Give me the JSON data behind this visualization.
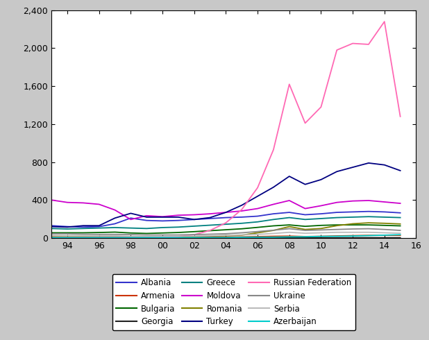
{
  "years": [
    1993,
    1994,
    1995,
    1996,
    1997,
    1998,
    1999,
    2000,
    2001,
    2002,
    2003,
    2004,
    2005,
    2006,
    2007,
    2008,
    2009,
    2010,
    2011,
    2012,
    2013,
    2014,
    2015
  ],
  "series": {
    "Albania": {
      "color": "#3333CC",
      "values": [
        130,
        120,
        115,
        120,
        150,
        210,
        185,
        180,
        185,
        195,
        205,
        215,
        220,
        230,
        255,
        270,
        245,
        255,
        270,
        275,
        280,
        275,
        265
      ]
    },
    "Armenia": {
      "color": "#CC3300",
      "values": [
        10,
        8,
        7,
        6,
        6,
        5,
        5,
        6,
        6,
        7,
        8,
        10,
        12,
        15,
        18,
        20,
        15,
        18,
        22,
        25,
        28,
        28,
        28
      ]
    },
    "Bulgaria": {
      "color": "#006600",
      "values": [
        55,
        55,
        55,
        58,
        62,
        53,
        48,
        53,
        58,
        67,
        77,
        87,
        97,
        112,
        128,
        138,
        123,
        133,
        138,
        138,
        138,
        133,
        128
      ]
    },
    "Georgia": {
      "color": "#222222",
      "values": [
        5,
        4,
        3,
        3,
        3,
        3,
        3,
        3,
        3,
        3,
        3,
        3,
        3,
        3,
        3,
        3,
        3,
        3,
        3,
        3,
        3,
        3,
        3
      ]
    },
    "Greece": {
      "color": "#008080",
      "values": [
        100,
        95,
        100,
        105,
        110,
        105,
        100,
        110,
        115,
        125,
        135,
        145,
        155,
        170,
        195,
        215,
        195,
        205,
        215,
        220,
        225,
        220,
        215
      ]
    },
    "Moldova": {
      "color": "#CC00CC",
      "values": [
        400,
        375,
        370,
        355,
        295,
        195,
        235,
        225,
        240,
        245,
        255,
        270,
        285,
        310,
        355,
        395,
        310,
        340,
        375,
        390,
        395,
        380,
        365
      ]
    },
    "Romania": {
      "color": "#808000",
      "values": [
        12,
        12,
        12,
        12,
        12,
        12,
        12,
        12,
        15,
        15,
        20,
        25,
        30,
        55,
        80,
        120,
        90,
        100,
        130,
        150,
        160,
        155,
        148
      ]
    },
    "Turkey": {
      "color": "#000080",
      "values": [
        120,
        115,
        130,
        130,
        210,
        260,
        220,
        220,
        220,
        195,
        215,
        270,
        345,
        440,
        535,
        650,
        565,
        615,
        700,
        745,
        790,
        770,
        710
      ]
    },
    "Russian Federation": {
      "color": "#FF69B4",
      "values": [
        5,
        5,
        5,
        5,
        5,
        5,
        5,
        8,
        15,
        35,
        80,
        160,
        300,
        530,
        930,
        1620,
        1210,
        1380,
        1980,
        2050,
        2040,
        2280,
        1280
      ]
    },
    "Ukraine": {
      "color": "#888888",
      "values": [
        45,
        45,
        40,
        38,
        38,
        36,
        32,
        32,
        32,
        36,
        40,
        45,
        55,
        68,
        82,
        98,
        80,
        85,
        90,
        95,
        98,
        90,
        80
      ]
    },
    "Serbia": {
      "color": "#BBBBBB",
      "values": [
        28,
        26,
        26,
        23,
        23,
        18,
        16,
        16,
        18,
        20,
        23,
        28,
        33,
        38,
        48,
        60,
        50,
        55,
        60,
        60,
        60,
        55,
        50
      ]
    },
    "Azerbaijan": {
      "color": "#00CCCC",
      "values": [
        4,
        4,
        4,
        4,
        4,
        4,
        4,
        4,
        4,
        4,
        4,
        4,
        8,
        9,
        9,
        12,
        13,
        17,
        18,
        21,
        25,
        30,
        35
      ]
    }
  },
  "xlim": [
    1993,
    2016
  ],
  "ylim": [
    0,
    2400
  ],
  "yticks": [
    0,
    400,
    800,
    1200,
    1600,
    2000,
    2400
  ],
  "xticks": [
    1994,
    1996,
    1998,
    2000,
    2002,
    2004,
    2006,
    2008,
    2010,
    2012,
    2014,
    2016
  ],
  "xtick_labels": [
    "94",
    "96",
    "98",
    "00",
    "02",
    "04",
    "06",
    "08",
    "10",
    "12",
    "14",
    "16"
  ],
  "background_color": "#C8C8C8",
  "plot_background": "#FFFFFF",
  "legend_order": [
    "Albania",
    "Armenia",
    "Bulgaria",
    "Georgia",
    "Greece",
    "Moldova",
    "Romania",
    "Turkey",
    "Russian Federation",
    "Ukraine",
    "Serbia",
    "Azerbaijan"
  ]
}
